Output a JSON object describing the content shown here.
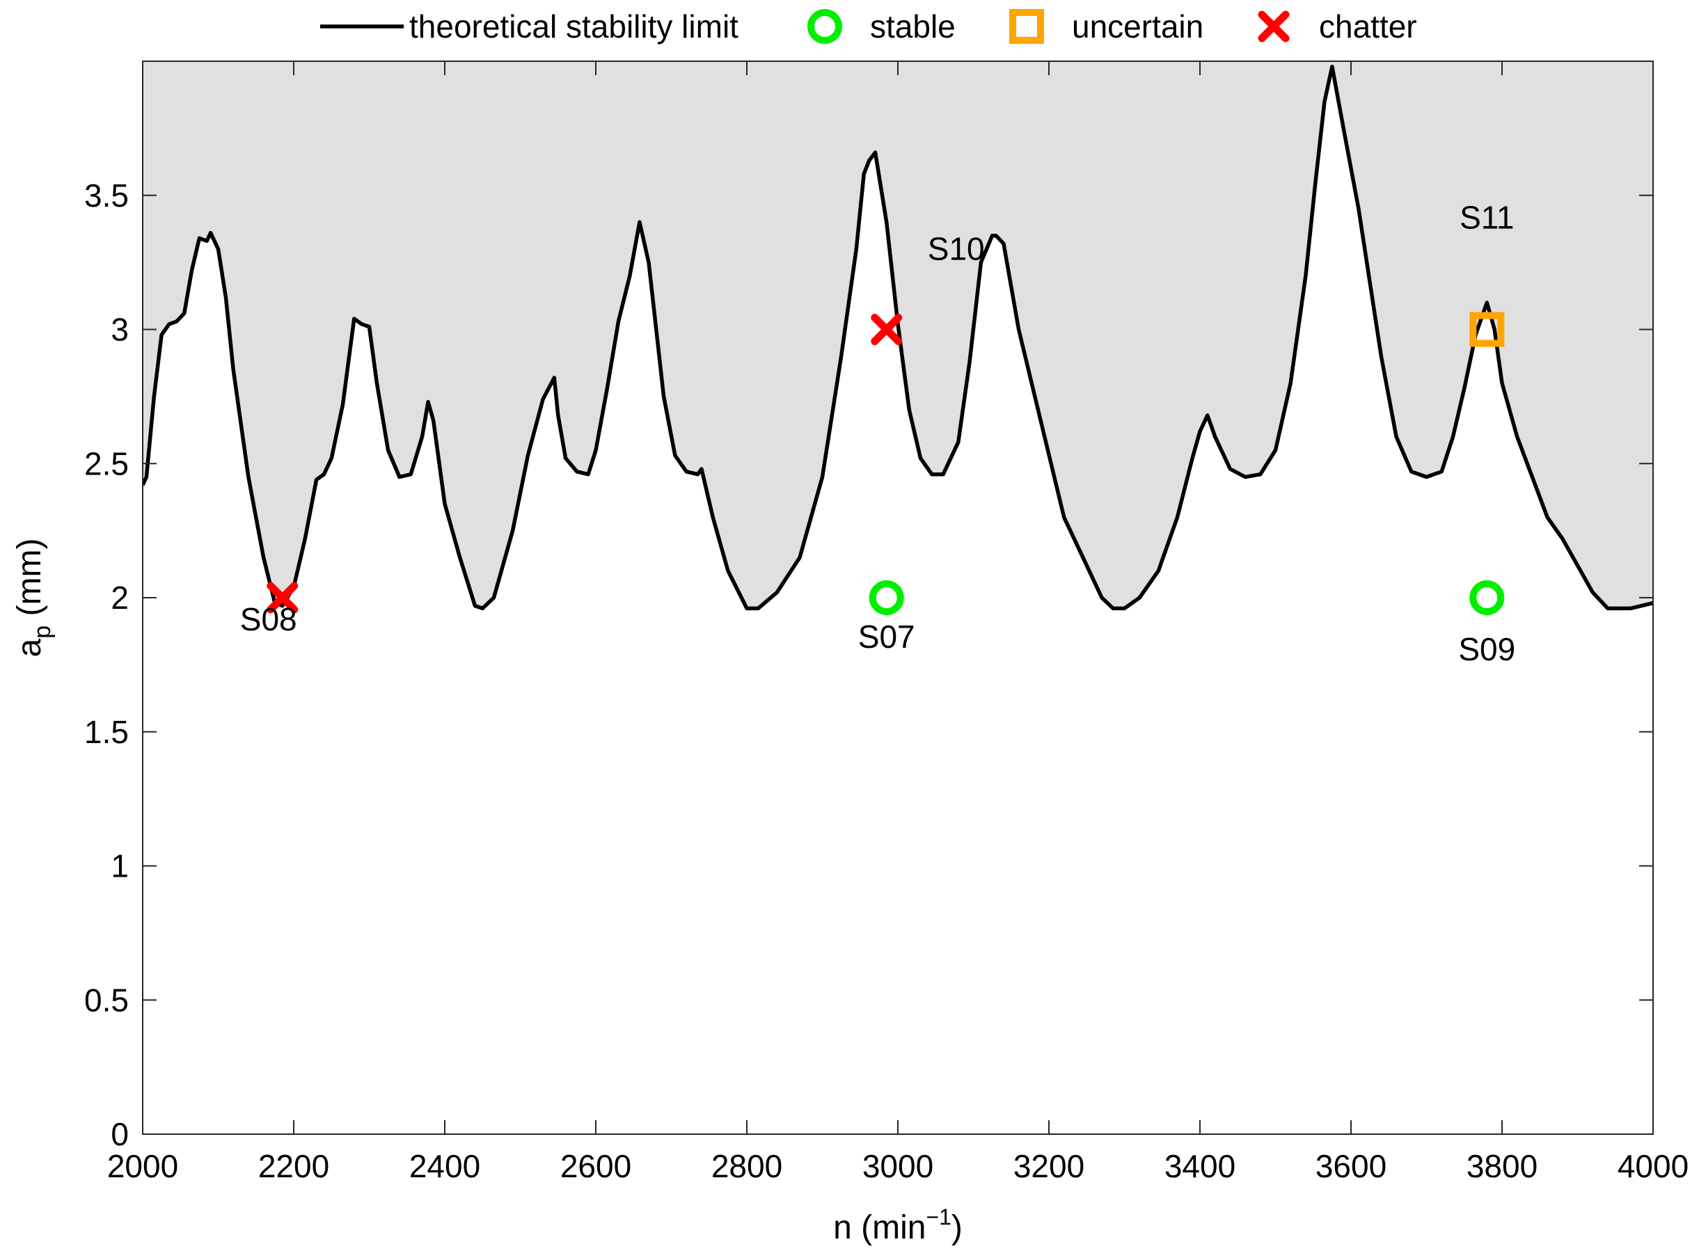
{
  "chart_data": {
    "type": "line",
    "title": "",
    "xlabel": {
      "main": "n (min",
      "sup": "−1",
      "close": ")"
    },
    "ylabel": {
      "main": "a",
      "sub": "p",
      "rest": " (mm)"
    },
    "xlim": [
      2000,
      4000
    ],
    "ylim": [
      0,
      4
    ],
    "xticks": [
      2000,
      2200,
      2400,
      2600,
      2800,
      3000,
      3200,
      3400,
      3600,
      3800,
      4000
    ],
    "yticks": [
      0,
      0.5,
      1,
      1.5,
      2,
      2.5,
      3,
      3.5
    ],
    "ytick_labels": [
      "0",
      "0.5",
      "1",
      "1.5",
      "2",
      "2.5",
      "3",
      "3.5"
    ],
    "grid": false,
    "legend_position": "top-outside",
    "legend": [
      {
        "label": "theoretical stability limit",
        "marker": "line",
        "color": "#000000"
      },
      {
        "label": "stable",
        "marker": "circle",
        "color": "#00ee00"
      },
      {
        "label": "uncertain",
        "marker": "square",
        "color": "#ffa500"
      },
      {
        "label": "chatter",
        "marker": "x",
        "color": "#ff0000"
      }
    ],
    "series": [
      {
        "name": "theoretical stability limit",
        "color": "#000000",
        "fill_above": "#e0e0e0",
        "x": [
          2000,
          2005,
          2015,
          2025,
          2035,
          2045,
          2055,
          2065,
          2075,
          2085,
          2090,
          2100,
          2110,
          2120,
          2140,
          2160,
          2175,
          2185,
          2200,
          2215,
          2230,
          2240,
          2250,
          2265,
          2280,
          2290,
          2300,
          2310,
          2325,
          2340,
          2355,
          2370,
          2378,
          2385,
          2400,
          2420,
          2440,
          2450,
          2465,
          2490,
          2510,
          2530,
          2545,
          2550,
          2560,
          2575,
          2590,
          2600,
          2615,
          2630,
          2645,
          2658,
          2670,
          2690,
          2705,
          2720,
          2735,
          2740,
          2755,
          2775,
          2800,
          2815,
          2840,
          2870,
          2900,
          2925,
          2945,
          2955,
          2962,
          2970,
          2985,
          3000,
          3015,
          3030,
          3045,
          3060,
          3080,
          3095,
          3110,
          3125,
          3130,
          3140,
          3160,
          3190,
          3220,
          3250,
          3270,
          3285,
          3300,
          3320,
          3345,
          3370,
          3390,
          3400,
          3410,
          3420,
          3440,
          3460,
          3480,
          3500,
          3520,
          3540,
          3553,
          3565,
          3575,
          3590,
          3610,
          3640,
          3660,
          3680,
          3700,
          3720,
          3735,
          3750,
          3765,
          3780,
          3790,
          3800,
          3820,
          3840,
          3860,
          3880,
          3900,
          3920,
          3940,
          3955,
          3970,
          3985,
          4000
        ],
        "y": [
          2.42,
          2.45,
          2.75,
          2.98,
          3.02,
          3.03,
          3.06,
          3.22,
          3.34,
          3.33,
          3.36,
          3.3,
          3.12,
          2.85,
          2.45,
          2.15,
          1.98,
          1.97,
          2.04,
          2.22,
          2.44,
          2.46,
          2.52,
          2.72,
          3.04,
          3.02,
          3.01,
          2.8,
          2.55,
          2.45,
          2.46,
          2.6,
          2.73,
          2.66,
          2.35,
          2.15,
          1.97,
          1.96,
          2.0,
          2.25,
          2.53,
          2.74,
          2.82,
          2.68,
          2.52,
          2.47,
          2.46,
          2.55,
          2.78,
          3.03,
          3.2,
          3.4,
          3.25,
          2.75,
          2.53,
          2.47,
          2.46,
          2.48,
          2.3,
          2.1,
          1.96,
          1.96,
          2.02,
          2.15,
          2.45,
          2.9,
          3.3,
          3.58,
          3.63,
          3.66,
          3.4,
          3.02,
          2.7,
          2.52,
          2.46,
          2.46,
          2.58,
          2.88,
          3.25,
          3.35,
          3.35,
          3.32,
          3.0,
          2.65,
          2.3,
          2.12,
          2.0,
          1.96,
          1.96,
          2.0,
          2.1,
          2.3,
          2.52,
          2.62,
          2.68,
          2.6,
          2.48,
          2.45,
          2.46,
          2.55,
          2.8,
          3.2,
          3.55,
          3.85,
          3.98,
          3.75,
          3.45,
          2.9,
          2.6,
          2.47,
          2.45,
          2.47,
          2.6,
          2.78,
          2.98,
          3.1,
          3.0,
          2.8,
          2.6,
          2.45,
          2.3,
          2.22,
          2.12,
          2.02,
          1.96,
          1.96,
          1.96,
          1.97,
          1.98
        ]
      }
    ],
    "experiments": [
      {
        "id": "S08",
        "n": 2185,
        "ap": 2.0,
        "result": "chatter",
        "label_pos": "below"
      },
      {
        "id": "S07",
        "n": 2985,
        "ap": 2.0,
        "result": "stable",
        "label_pos": "below"
      },
      {
        "id": "S10",
        "n": 2985,
        "ap": 3.0,
        "result": "chatter",
        "label_pos": "above-right"
      },
      {
        "id": "S09",
        "n": 3780,
        "ap": 2.0,
        "result": "stable",
        "label_pos": "below"
      },
      {
        "id": "S11",
        "n": 3780,
        "ap": 3.0,
        "result": "uncertain",
        "label_pos": "above"
      }
    ]
  }
}
